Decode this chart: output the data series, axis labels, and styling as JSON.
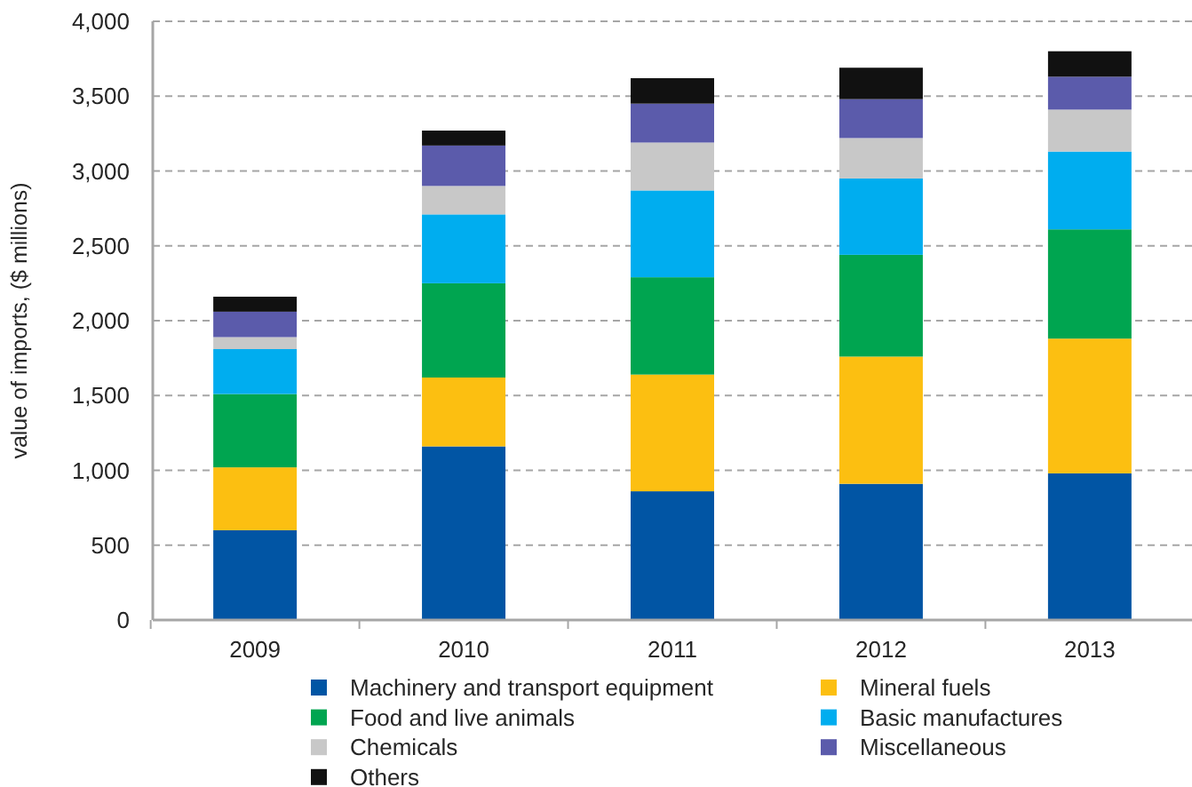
{
  "chart_data": {
    "type": "bar",
    "stacked": true,
    "ylabel": "value of imports, ($ millions)",
    "categories": [
      "2009",
      "2010",
      "2011",
      "2012",
      "2013"
    ],
    "series": [
      {
        "name": "Machinery and transport equipment",
        "color": "#0155a4",
        "values": [
          600,
          1160,
          860,
          910,
          980
        ]
      },
      {
        "name": "Mineral fuels",
        "color": "#fcbf11",
        "values": [
          420,
          460,
          780,
          850,
          900
        ]
      },
      {
        "name": "Food and live animals",
        "color": "#00a550",
        "values": [
          490,
          630,
          650,
          680,
          730
        ]
      },
      {
        "name": "Basic manufactures",
        "color": "#00adef",
        "values": [
          300,
          460,
          580,
          510,
          520
        ]
      },
      {
        "name": "Chemicals",
        "color": "#c8c8c8",
        "values": [
          80,
          190,
          320,
          270,
          280
        ]
      },
      {
        "name": "Miscellaneous",
        "color": "#5b5bab",
        "values": [
          170,
          270,
          260,
          260,
          220
        ]
      },
      {
        "name": "Others",
        "color": "#111111",
        "values": [
          100,
          100,
          170,
          210,
          170
        ]
      }
    ],
    "ylim": [
      0,
      4000
    ],
    "yticks": [
      0,
      500,
      {
        "value": 1000,
        "label": "1,000"
      },
      {
        "value": 1500,
        "label": "1,500"
      },
      {
        "value": 2000,
        "label": "2,000"
      },
      {
        "value": 2500,
        "label": "2,500"
      },
      {
        "value": 3000,
        "label": "3,000"
      },
      {
        "value": 3500,
        "label": "3,500"
      },
      {
        "value": 4000,
        "label": "4,000"
      }
    ],
    "grid": "y",
    "legend": "bottom"
  }
}
